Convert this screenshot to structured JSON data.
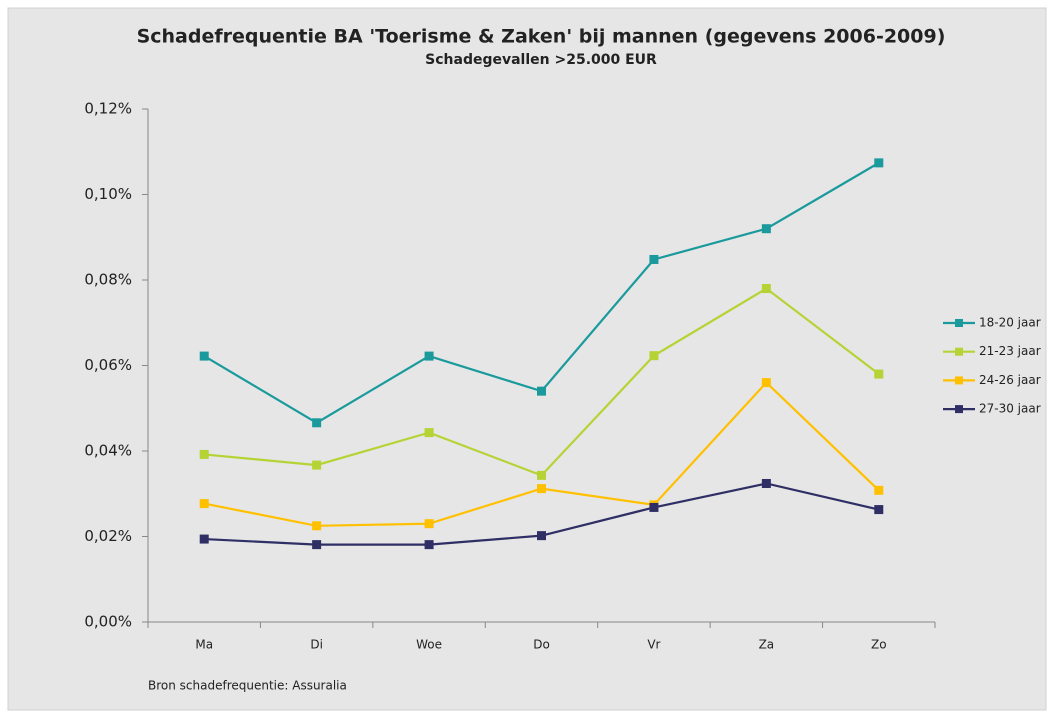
{
  "chart_data": {
    "type": "line",
    "title": "Schadefrequentie BA 'Toerisme & Zaken' bij mannen (gegevens 2006-2009)",
    "subtitle": "Schadegevallen >25.000 EUR",
    "source": "Bron schadefrequentie: Assuralia",
    "categories": [
      "Ma",
      "Di",
      "Woe",
      "Do",
      "Vr",
      "Za",
      "Zo"
    ],
    "series": [
      {
        "name": "18-20 jaar",
        "color": "#1a9a9c",
        "values": [
          0.0622,
          0.0466,
          0.0622,
          0.054,
          0.0848,
          0.092,
          0.1074
        ]
      },
      {
        "name": "21-23 jaar",
        "color": "#b5d334",
        "values": [
          0.0392,
          0.0367,
          0.0443,
          0.0343,
          0.0623,
          0.078,
          0.058
        ]
      },
      {
        "name": "24-26 jaar",
        "color": "#ffc000",
        "values": [
          0.0277,
          0.0225,
          0.023,
          0.0312,
          0.0274,
          0.056,
          0.0308
        ]
      },
      {
        "name": "27-30 jaar",
        "color": "#2f2f66",
        "values": [
          0.0194,
          0.0181,
          0.0181,
          0.0202,
          0.0268,
          0.0324,
          0.0263
        ]
      }
    ],
    "ylim": [
      0,
      0.12
    ],
    "yticks": [
      {
        "value": 0,
        "label": "0,00%"
      },
      {
        "value": 0.02,
        "label": "0,02%"
      },
      {
        "value": 0.04,
        "label": "0,04%"
      },
      {
        "value": 0.06,
        "label": "0,06%"
      },
      {
        "value": 0.08,
        "label": "0,08%"
      },
      {
        "value": 0.1,
        "label": "0,10%"
      },
      {
        "value": 0.12,
        "label": "0,12%"
      }
    ],
    "grid": false,
    "legend": "right"
  }
}
